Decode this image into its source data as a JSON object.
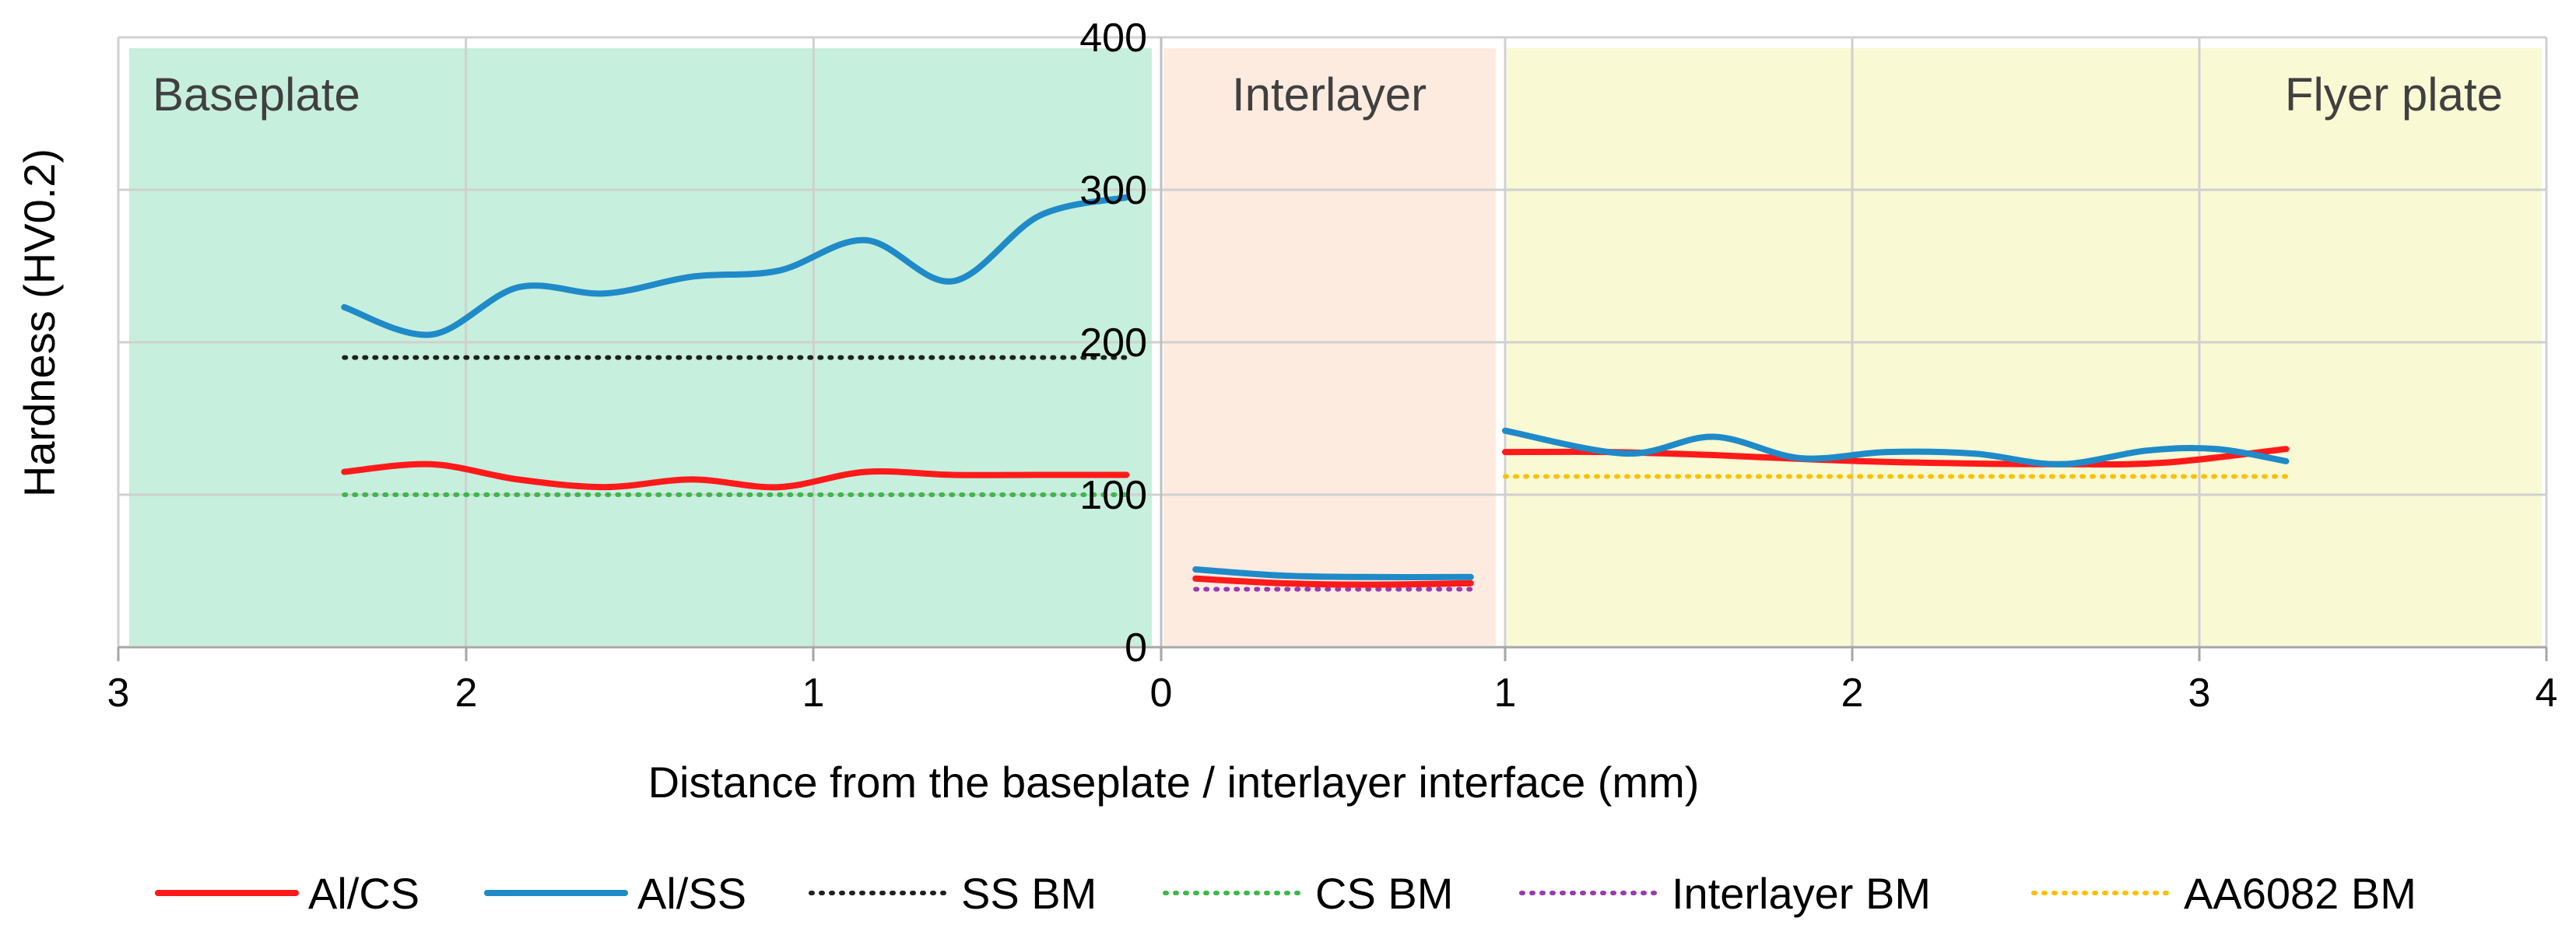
{
  "chart_data": {
    "type": "line",
    "xlabel": "Distance from the baseplate / interlayer interface (mm)",
    "ylabel": "Hardness (HV0.2)",
    "ylim": [
      0,
      400
    ],
    "yticks": [
      0,
      100,
      200,
      300,
      400
    ],
    "grid": true,
    "legend_position": "bottom",
    "regions": [
      {
        "label": "Baseplate",
        "color": "#c6efde"
      },
      {
        "label": "Interlayer",
        "color": "#fdebe0"
      },
      {
        "label": "Flyer plate",
        "color": "#f9f9d4"
      }
    ],
    "x_axis": {
      "baseplate": {
        "direction": "reversed",
        "ticks": [
          3,
          2,
          1,
          0
        ]
      },
      "interlayer": {
        "ticks": [
          0,
          1
        ]
      },
      "flyer": {
        "ticks": [
          1,
          2,
          3,
          4
        ]
      }
    },
    "series": [
      {
        "name": "Al/CS",
        "color": "#ff1a1a",
        "style": "solid",
        "baseplate": [
          [
            2.35,
            115
          ],
          [
            2.1,
            120
          ],
          [
            1.85,
            110
          ],
          [
            1.6,
            105
          ],
          [
            1.35,
            110
          ],
          [
            1.1,
            105
          ],
          [
            0.85,
            115
          ],
          [
            0.6,
            113
          ],
          [
            0.35,
            113
          ],
          [
            0.1,
            113
          ]
        ],
        "interlayer": [
          [
            0.1,
            45
          ],
          [
            0.35,
            42
          ],
          [
            0.6,
            41
          ],
          [
            0.9,
            42
          ]
        ],
        "flyer": [
          [
            1.0,
            128
          ],
          [
            1.3,
            128
          ],
          [
            1.6,
            126
          ],
          [
            1.9,
            123
          ],
          [
            2.2,
            121
          ],
          [
            2.6,
            120
          ],
          [
            2.9,
            121
          ],
          [
            3.25,
            130
          ]
        ]
      },
      {
        "name": "Al/SS",
        "color": "#1f8ac8",
        "style": "solid",
        "baseplate": [
          [
            2.35,
            223
          ],
          [
            2.1,
            205
          ],
          [
            1.85,
            236
          ],
          [
            1.6,
            232
          ],
          [
            1.35,
            243
          ],
          [
            1.1,
            247
          ],
          [
            0.85,
            267
          ],
          [
            0.6,
            240
          ],
          [
            0.35,
            283
          ],
          [
            0.1,
            295
          ]
        ],
        "interlayer": [
          [
            0.1,
            51
          ],
          [
            0.35,
            47
          ],
          [
            0.6,
            46
          ],
          [
            0.9,
            46
          ]
        ],
        "flyer": [
          [
            1.0,
            142
          ],
          [
            1.35,
            127
          ],
          [
            1.6,
            138
          ],
          [
            1.85,
            124
          ],
          [
            2.1,
            128
          ],
          [
            2.35,
            127
          ],
          [
            2.6,
            120
          ],
          [
            2.85,
            129
          ],
          [
            3.05,
            130
          ],
          [
            3.25,
            122
          ]
        ]
      },
      {
        "name": "SS BM",
        "color": "#202020",
        "style": "dotted",
        "baseplate": [
          [
            2.35,
            190
          ],
          [
            0.1,
            190
          ]
        ]
      },
      {
        "name": "CS BM",
        "color": "#3cb84a",
        "style": "dotted",
        "baseplate": [
          [
            2.35,
            100
          ],
          [
            0.1,
            100
          ]
        ]
      },
      {
        "name": "Interlayer BM",
        "color": "#9a3ab2",
        "style": "dotted",
        "interlayer": [
          [
            0.1,
            38
          ],
          [
            0.9,
            38
          ]
        ]
      },
      {
        "name": "AA6082 BM",
        "color": "#ffc000",
        "style": "dotted",
        "flyer": [
          [
            1.0,
            112
          ],
          [
            3.25,
            112
          ]
        ]
      }
    ]
  }
}
